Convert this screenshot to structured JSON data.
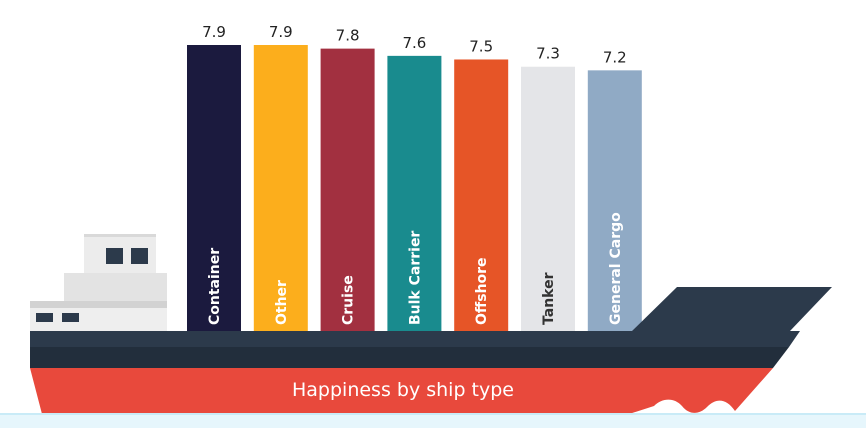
{
  "chart_data": {
    "type": "bar",
    "title": "Happiness by ship type",
    "categories": [
      "Container",
      "Other",
      "Cruise",
      "Bulk Carrier",
      "Offshore",
      "Tanker",
      "General Cargo"
    ],
    "values": [
      7.9,
      7.9,
      7.8,
      7.6,
      7.5,
      7.3,
      7.2
    ],
    "value_labels": [
      "7.9",
      "7.9",
      "7.8",
      "7.6",
      "7.5",
      "7.3",
      "7.2"
    ],
    "bar_colors": [
      "#1b1a3e",
      "#fcae1c",
      "#a23040",
      "#198b8e",
      "#e65527",
      "#e4e5e8",
      "#90aac5"
    ],
    "label_colors": [
      "#ffffff",
      "#ffffff",
      "#ffffff",
      "#ffffff",
      "#ffffff",
      "#333333",
      "#ffffff"
    ],
    "ylim": [
      0,
      7.9
    ],
    "grid": false,
    "legend": "none"
  },
  "colors": {
    "hull_dark": "#2c3a4b",
    "hull_band": "#222e3c",
    "hull_red": "#e8493c",
    "superstructure": "#e3e3e3",
    "superstructure_light": "#efefef",
    "window": "#2c3a4b",
    "waterline": "#e6f6fc"
  }
}
